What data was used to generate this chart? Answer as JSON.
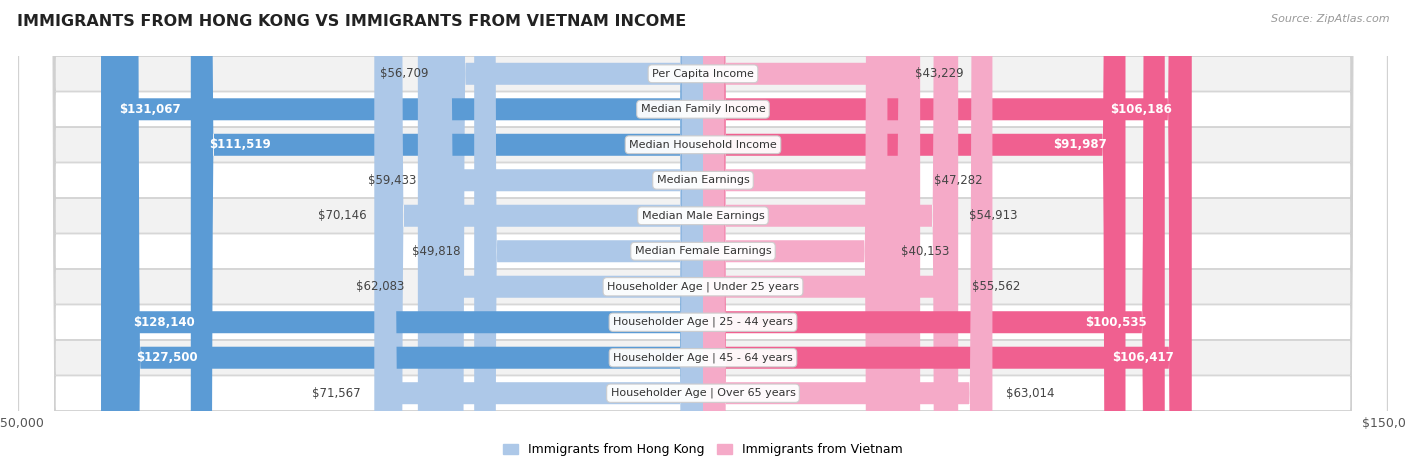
{
  "title": "IMMIGRANTS FROM HONG KONG VS IMMIGRANTS FROM VIETNAM INCOME",
  "source": "Source: ZipAtlas.com",
  "categories": [
    "Per Capita Income",
    "Median Family Income",
    "Median Household Income",
    "Median Earnings",
    "Median Male Earnings",
    "Median Female Earnings",
    "Householder Age | Under 25 years",
    "Householder Age | 25 - 44 years",
    "Householder Age | 45 - 64 years",
    "Householder Age | Over 65 years"
  ],
  "hk_values": [
    56709,
    131067,
    111519,
    59433,
    70146,
    49818,
    62083,
    128140,
    127500,
    71567
  ],
  "vn_values": [
    43229,
    106186,
    91987,
    47282,
    54913,
    40153,
    55562,
    100535,
    106417,
    63014
  ],
  "hk_labels": [
    "$56,709",
    "$131,067",
    "$111,519",
    "$59,433",
    "$70,146",
    "$49,818",
    "$62,083",
    "$128,140",
    "$127,500",
    "$71,567"
  ],
  "vn_labels": [
    "$43,229",
    "$106,186",
    "$91,987",
    "$47,282",
    "$54,913",
    "$40,153",
    "$55,562",
    "$100,535",
    "$106,417",
    "$63,014"
  ],
  "hk_color_light": "#adc8e8",
  "hk_color_dark": "#5b9bd5",
  "vn_color_light": "#f5aac8",
  "vn_color_dark": "#f06090",
  "hk_large_threshold": 90000,
  "vn_large_threshold": 90000,
  "max_value": 150000,
  "legend_hk": "Immigrants from Hong Kong",
  "legend_vn": "Immigrants from Vietnam",
  "background_color": "#ffffff",
  "row_even_color": "#f2f2f2",
  "row_odd_color": "#ffffff",
  "row_border_color": "#d0d0d0",
  "center_label_bg": "#ffffff",
  "center_label_border": "#cccccc",
  "label_dark_color": "#444444",
  "label_white_color": "#ffffff"
}
